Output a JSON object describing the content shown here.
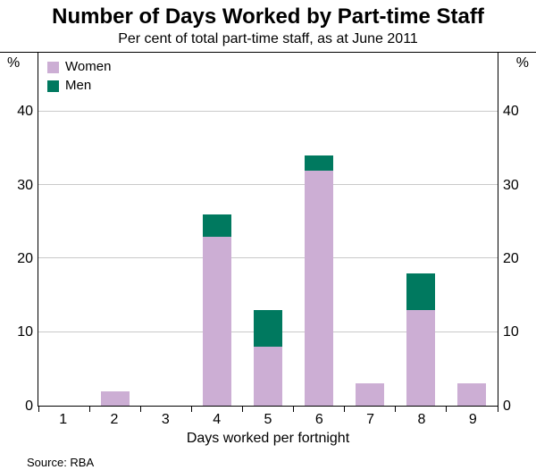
{
  "chart_data": {
    "type": "bar",
    "stacked": true,
    "title": "Number of Days Worked by Part-time Staff",
    "subtitle": "Per cent of total part-time staff, as at June 2011",
    "xlabel": "Days worked per fortnight",
    "ylabel_left": "%",
    "ylabel_right": "%",
    "categories": [
      "1",
      "2",
      "3",
      "4",
      "5",
      "6",
      "7",
      "8",
      "9"
    ],
    "series": [
      {
        "name": "Women",
        "color": "#ccaed4",
        "values": [
          0,
          2,
          0,
          23,
          8,
          32,
          3,
          13,
          3
        ]
      },
      {
        "name": "Men",
        "color": "#00795f",
        "values": [
          0,
          0,
          0,
          3,
          5,
          2,
          0,
          5,
          0
        ]
      }
    ],
    "yticks": [
      0,
      10,
      20,
      30,
      40
    ],
    "ylim": [
      0,
      48
    ],
    "grid": true,
    "legend_position": "top-left",
    "source": "Source: RBA",
    "colors": {
      "grid": "#c9c9c9",
      "axis": "#000000"
    }
  }
}
